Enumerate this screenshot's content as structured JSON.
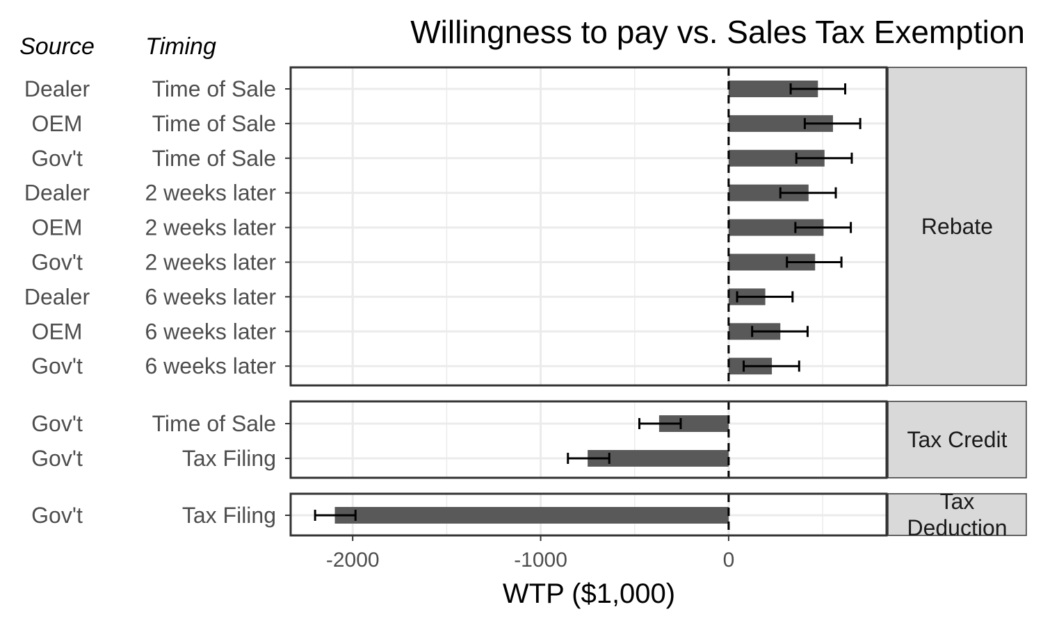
{
  "chart_data": {
    "type": "bar",
    "orientation": "horizontal",
    "title": "Willingness to pay vs. Sales Tax Exemption",
    "xlabel": "WTP ($1,000)",
    "ylabel_columns": [
      "Source",
      "Timing"
    ],
    "xlim": [
      -2330,
      840
    ],
    "x_ticks": [
      -2000,
      -1000,
      0
    ],
    "x_tick_labels": [
      "-2000",
      "-1000",
      "0"
    ],
    "reference_line": 0,
    "grid": true,
    "colors": {
      "bar": "#595959",
      "errorbar": "#000000",
      "strip": "#d9d9d9",
      "panel_border": "#333333",
      "grid": "#ebebeb"
    },
    "panels": [
      {
        "label": "Rebate",
        "rows": [
          {
            "source": "Dealer",
            "timing": "Time of Sale",
            "value": 475,
            "ci": [
              330,
              620
            ]
          },
          {
            "source": "OEM",
            "timing": "Time of Sale",
            "value": 555,
            "ci": [
              405,
              700
            ]
          },
          {
            "source": "Gov't",
            "timing": "Time of Sale",
            "value": 510,
            "ci": [
              360,
              655
            ]
          },
          {
            "source": "Dealer",
            "timing": "2 weeks later",
            "value": 425,
            "ci": [
              275,
              570
            ]
          },
          {
            "source": "OEM",
            "timing": "2 weeks later",
            "value": 505,
            "ci": [
              355,
              650
            ]
          },
          {
            "source": "Gov't",
            "timing": "2 weeks later",
            "value": 460,
            "ci": [
              310,
              600
            ]
          },
          {
            "source": "Dealer",
            "timing": "6 weeks later",
            "value": 195,
            "ci": [
              45,
              340
            ]
          },
          {
            "source": "OEM",
            "timing": "6 weeks later",
            "value": 275,
            "ci": [
              125,
              420
            ]
          },
          {
            "source": "Gov't",
            "timing": "6 weeks later",
            "value": 230,
            "ci": [
              80,
              375
            ]
          }
        ]
      },
      {
        "label": "Tax Credit",
        "rows": [
          {
            "source": "Gov't",
            "timing": "Time of Sale",
            "value": -370,
            "ci": [
              -475,
              -255
            ]
          },
          {
            "source": "Gov't",
            "timing": "Tax Filing",
            "value": -750,
            "ci": [
              -855,
              -635
            ]
          }
        ]
      },
      {
        "label": "Tax\nDeduction",
        "rows": [
          {
            "source": "Gov't",
            "timing": "Tax Filing",
            "value": -2095,
            "ci": [
              -2200,
              -1985
            ]
          }
        ]
      }
    ]
  }
}
